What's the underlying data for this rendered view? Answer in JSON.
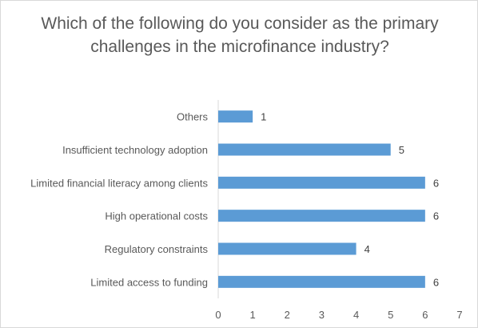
{
  "chart_data": {
    "type": "bar",
    "orientation": "horizontal",
    "title": "Which of the following do you consider as the primary challenges in the microfinance industry?",
    "categories": [
      "Others",
      "Insufficient technology adoption",
      "Limited financial literacy among clients",
      "High operational costs",
      "Regulatory constraints",
      "Limited access to funding"
    ],
    "values": [
      1,
      5,
      6,
      6,
      4,
      6
    ],
    "xlim": [
      0,
      7
    ],
    "xticks": [
      "0",
      "1",
      "2",
      "3",
      "4",
      "5",
      "6",
      "7"
    ],
    "data_labels": [
      "1",
      "5",
      "6",
      "6",
      "4",
      "6"
    ],
    "grid": false,
    "legend": "none",
    "bar_color": "#5b9bd5",
    "text_color": "#595959"
  }
}
